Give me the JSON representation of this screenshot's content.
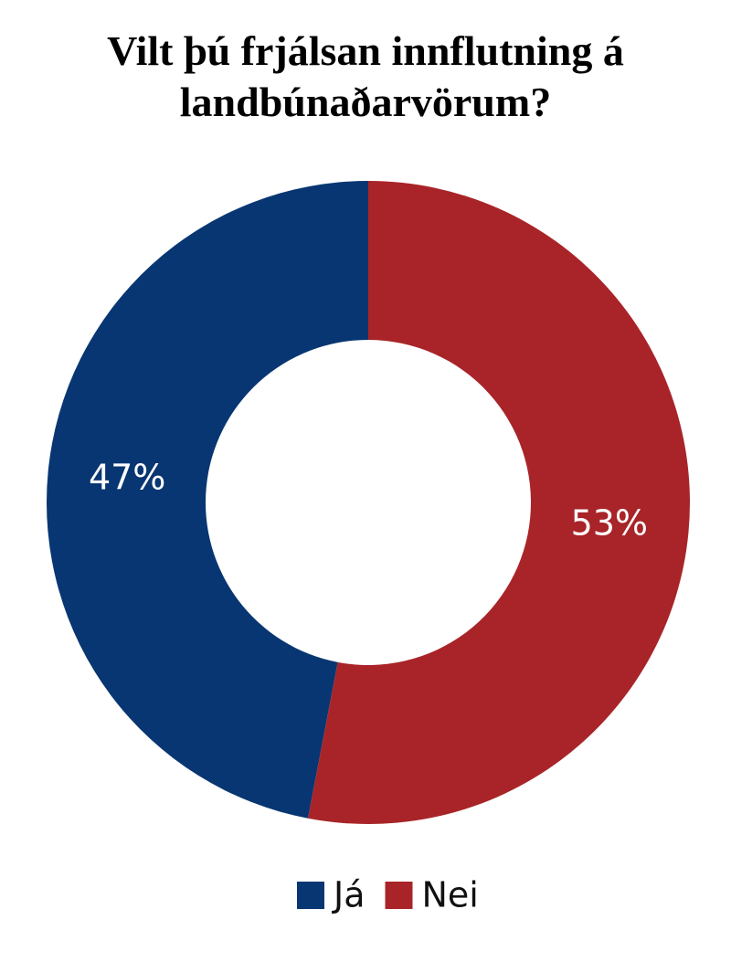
{
  "chart_data": {
    "type": "donut",
    "title": "Vilt þú frjálsan innflutning á landbúnaðarvörum?",
    "categories": [
      "Já",
      "Nei"
    ],
    "values": [
      47,
      53
    ],
    "value_labels": [
      "47%",
      "53%"
    ],
    "colors": [
      "#083672",
      "#a82428"
    ],
    "legend": "bottom"
  }
}
